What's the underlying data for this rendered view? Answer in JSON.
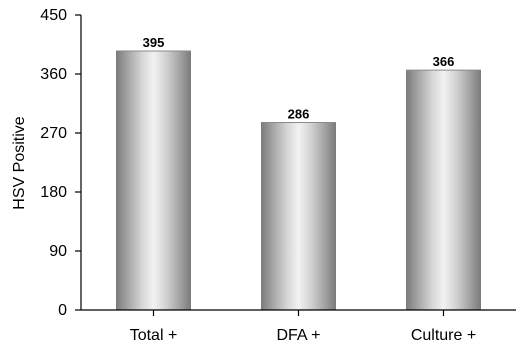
{
  "chart_data": {
    "type": "bar",
    "title": "",
    "xlabel": "",
    "ylabel": "HSV Positive",
    "categories": [
      "Total +",
      "DFA +",
      "Culture +"
    ],
    "values": [
      395,
      286,
      366
    ],
    "data_labels": [
      "395",
      "286",
      "366"
    ],
    "ylim": [
      0,
      450
    ],
    "yticks": [
      0,
      90,
      180,
      270,
      360,
      450
    ],
    "grid": false,
    "legend": "none",
    "bar_style": "grey cylindrical gradient",
    "colors": {
      "bar_dark": "#7a7a7a",
      "bar_mid": "#bdbdbd",
      "bar_light": "#f2f2f2",
      "axis": "#000000"
    }
  }
}
